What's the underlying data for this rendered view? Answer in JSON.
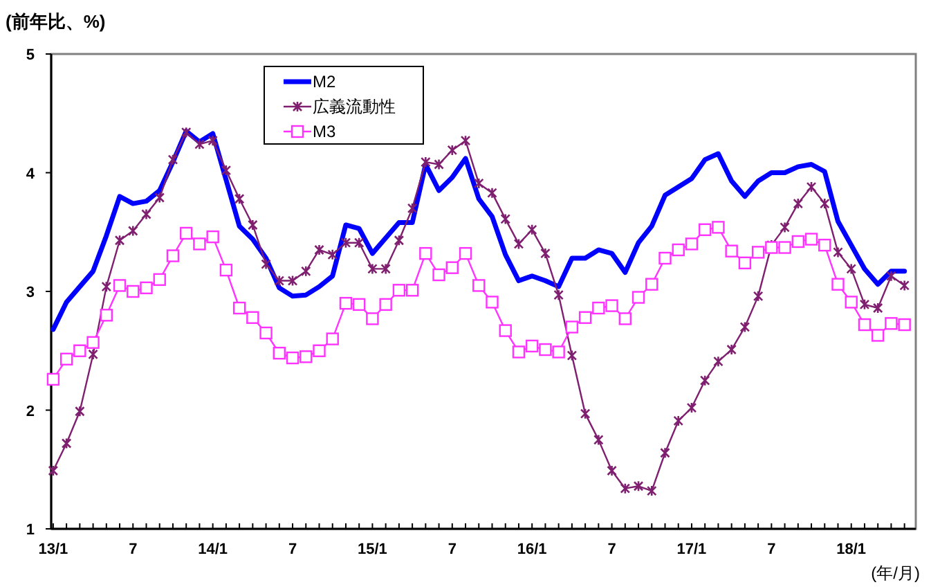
{
  "chart_data": {
    "type": "line",
    "ylabel": "(前年比、%)",
    "xlabel": "(年/月)",
    "categories": [
      "13/1",
      null,
      null,
      null,
      null,
      null,
      "7",
      null,
      null,
      null,
      null,
      null,
      "14/1",
      null,
      null,
      null,
      null,
      null,
      "7",
      null,
      null,
      null,
      null,
      null,
      "15/1",
      null,
      null,
      null,
      null,
      null,
      "7",
      null,
      null,
      null,
      null,
      null,
      "16/1",
      null,
      null,
      null,
      null,
      null,
      "7",
      null,
      null,
      null,
      null,
      null,
      "17/1",
      null,
      null,
      null,
      null,
      null,
      "7",
      null,
      null,
      null,
      null,
      null,
      "18/1",
      null,
      null,
      null,
      null
    ],
    "ylim": [
      1,
      5
    ],
    "yticks": [
      1,
      2,
      3,
      4,
      5
    ],
    "grid": false,
    "legend": "top left",
    "series": [
      {
        "name": "M2",
        "color": "#0000ff",
        "marker": "none",
        "values": [
          2.68,
          2.91,
          3.04,
          3.17,
          3.47,
          3.8,
          3.74,
          3.76,
          3.85,
          4.09,
          4.35,
          4.26,
          4.33,
          3.94,
          3.55,
          3.44,
          3.28,
          3.03,
          2.96,
          2.97,
          3.04,
          3.13,
          3.56,
          3.53,
          3.32,
          3.45,
          3.58,
          3.58,
          4.07,
          3.85,
          3.96,
          4.12,
          3.78,
          3.63,
          3.31,
          3.09,
          3.13,
          3.09,
          3.04,
          3.28,
          3.28,
          3.35,
          3.32,
          3.16,
          3.41,
          3.55,
          3.81,
          3.88,
          3.95,
          4.11,
          4.16,
          3.93,
          3.8,
          3.93,
          4.0,
          4.0,
          4.05,
          4.07,
          4.01,
          3.59,
          3.39,
          3.19,
          3.06,
          3.17,
          3.17
        ]
      },
      {
        "name": "広義流動性",
        "color": "#7f1f6f",
        "marker": "cross",
        "values": [
          1.49,
          1.72,
          1.99,
          2.47,
          3.04,
          3.43,
          3.51,
          3.65,
          3.79,
          4.11,
          4.34,
          4.24,
          4.27,
          4.02,
          3.78,
          3.56,
          3.23,
          3.09,
          3.09,
          3.17,
          3.35,
          3.31,
          3.41,
          3.41,
          3.19,
          3.19,
          3.43,
          3.7,
          4.09,
          4.07,
          4.19,
          4.27,
          3.91,
          3.83,
          3.61,
          3.4,
          3.52,
          3.32,
          2.97,
          2.46,
          1.97,
          1.75,
          1.49,
          1.34,
          1.36,
          1.32,
          1.64,
          1.91,
          2.02,
          2.25,
          2.41,
          2.51,
          2.7,
          2.96,
          3.39,
          3.54,
          3.74,
          3.88,
          3.74,
          3.33,
          3.19,
          2.89,
          2.86,
          3.13,
          3.05
        ]
      },
      {
        "name": "M3",
        "color": "#ff33ff",
        "marker": "square",
        "values": [
          2.26,
          2.43,
          2.5,
          2.57,
          2.8,
          3.05,
          3.0,
          3.03,
          3.1,
          3.3,
          3.49,
          3.4,
          3.46,
          3.18,
          2.86,
          2.78,
          2.65,
          2.48,
          2.44,
          2.45,
          2.5,
          2.6,
          2.9,
          2.89,
          2.77,
          2.89,
          3.01,
          3.01,
          3.32,
          3.14,
          3.2,
          3.32,
          3.05,
          2.91,
          2.67,
          2.49,
          2.54,
          2.51,
          2.49,
          2.7,
          2.78,
          2.86,
          2.88,
          2.77,
          2.95,
          3.06,
          3.28,
          3.35,
          3.4,
          3.52,
          3.54,
          3.34,
          3.24,
          3.33,
          3.37,
          3.37,
          3.42,
          3.44,
          3.39,
          3.06,
          2.91,
          2.72,
          2.63,
          2.73,
          2.72
        ]
      }
    ]
  }
}
